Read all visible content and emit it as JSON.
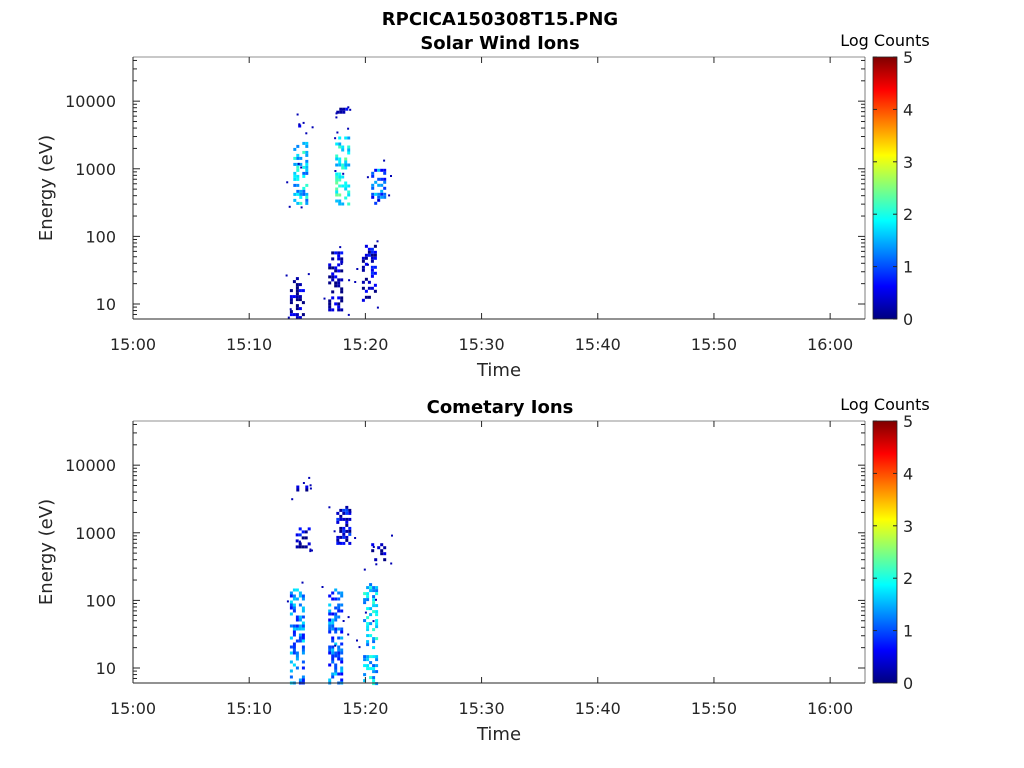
{
  "figure_title": "RPCICA150308T15.PNG",
  "colors": {
    "axes": "#262626",
    "colormap": [
      "#00007f",
      "#0000ff",
      "#007fff",
      "#00ffff",
      "#7fff7f",
      "#ffff00",
      "#ff7f00",
      "#ff0000",
      "#7f0000"
    ]
  },
  "chart_data": [
    {
      "type": "heatmap",
      "title": "Solar Wind Ions",
      "xlabel": "Time",
      "ylabel": "Energy (eV)",
      "x_range": [
        "15:00",
        "16:03"
      ],
      "x_ticks": [
        "15:00",
        "15:10",
        "15:20",
        "15:30",
        "15:40",
        "15:50",
        "16:00"
      ],
      "y_scale": "log",
      "y_range": [
        6,
        45000
      ],
      "y_ticks": [
        10,
        100,
        1000,
        10000
      ],
      "y_tick_labels": [
        "10",
        "100",
        "1000",
        "10000"
      ],
      "colorbar": {
        "title": "Log Counts",
        "range": [
          0,
          5
        ],
        "ticks": [
          "0",
          "1",
          "2",
          "3",
          "4",
          "5"
        ]
      },
      "blobs": [
        {
          "t": "15:14.3",
          "e_min": 300,
          "e_max": 2500,
          "level": 1.7
        },
        {
          "t": "15:14.2",
          "e_min": 4000,
          "e_max": 5000,
          "level": 0.6
        },
        {
          "t": "15:17.9",
          "e_min": 300,
          "e_max": 3000,
          "level": 2.0
        },
        {
          "t": "15:18.0",
          "e_min": 7000,
          "e_max": 8000,
          "level": 0.4
        },
        {
          "t": "15:21.0",
          "e_min": 320,
          "e_max": 1000,
          "level": 1.2
        },
        {
          "t": "15:14.0",
          "e_min": 6,
          "e_max": 25,
          "level": 0.3
        },
        {
          "t": "15:17.3",
          "e_min": 8,
          "e_max": 60,
          "level": 0.3
        },
        {
          "t": "15:20.2",
          "e_min": 10,
          "e_max": 75,
          "level": 0.4
        }
      ]
    },
    {
      "type": "heatmap",
      "title": "Cometary Ions",
      "xlabel": "Time",
      "ylabel": "Energy (eV)",
      "x_range": [
        "15:00",
        "16:03"
      ],
      "x_ticks": [
        "15:00",
        "15:10",
        "15:20",
        "15:30",
        "15:40",
        "15:50",
        "16:00"
      ],
      "y_scale": "log",
      "y_range": [
        6,
        45000
      ],
      "y_ticks": [
        10,
        100,
        1000,
        10000
      ],
      "y_tick_labels": [
        "10",
        "100",
        "1000",
        "10000"
      ],
      "colorbar": {
        "title": "Log Counts",
        "range": [
          0,
          5
        ],
        "ticks": [
          "0",
          "1",
          "2",
          "3",
          "4",
          "5"
        ]
      },
      "blobs": [
        {
          "t": "15:14.0",
          "e_min": 6,
          "e_max": 150,
          "level": 1.3
        },
        {
          "t": "15:17.3",
          "e_min": 6,
          "e_max": 150,
          "level": 1.2
        },
        {
          "t": "15:20.3",
          "e_min": 6,
          "e_max": 180,
          "level": 1.7
        },
        {
          "t": "15:14.5",
          "e_min": 600,
          "e_max": 1200,
          "level": 0.4
        },
        {
          "t": "15:18.0",
          "e_min": 700,
          "e_max": 2500,
          "level": 0.5
        },
        {
          "t": "15:14.3",
          "e_min": 4500,
          "e_max": 5000,
          "level": 0.3
        },
        {
          "t": "15:21.0",
          "e_min": 400,
          "e_max": 700,
          "level": 0.3
        }
      ]
    }
  ]
}
